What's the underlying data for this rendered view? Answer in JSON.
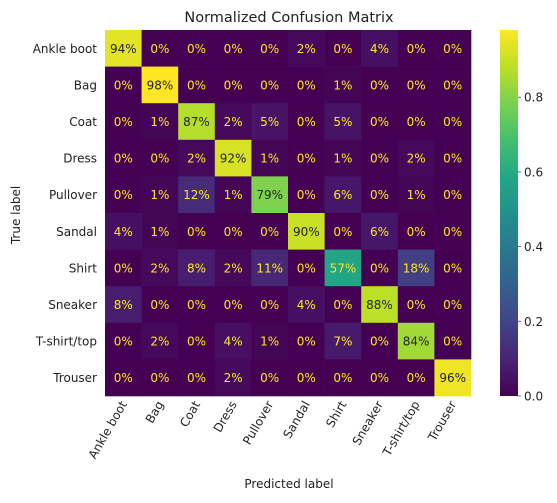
{
  "chart_data": {
    "type": "heatmap",
    "title": "Normalized Confusion Matrix",
    "xlabel": "Predicted label",
    "ylabel": "True label",
    "row_labels": [
      "Ankle boot",
      "Bag",
      "Coat",
      "Dress",
      "Pullover",
      "Sandal",
      "Shirt",
      "Sneaker",
      "T-shirt/top",
      "Trouser"
    ],
    "col_labels": [
      "Ankle boot",
      "Bag",
      "Coat",
      "Dress",
      "Pullover",
      "Sandal",
      "Shirt",
      "Sneaker",
      "T-shirt/top",
      "Trouser"
    ],
    "values": [
      [
        0.94,
        0.0,
        0.0,
        0.0,
        0.0,
        0.02,
        0.0,
        0.04,
        0.0,
        0.0
      ],
      [
        0.0,
        0.98,
        0.0,
        0.0,
        0.0,
        0.0,
        0.01,
        0.0,
        0.0,
        0.0
      ],
      [
        0.0,
        0.01,
        0.87,
        0.02,
        0.05,
        0.0,
        0.05,
        0.0,
        0.0,
        0.0
      ],
      [
        0.0,
        0.0,
        0.02,
        0.92,
        0.01,
        0.0,
        0.01,
        0.0,
        0.02,
        0.0
      ],
      [
        0.0,
        0.01,
        0.12,
        0.01,
        0.79,
        0.0,
        0.06,
        0.0,
        0.01,
        0.0
      ],
      [
        0.04,
        0.01,
        0.0,
        0.0,
        0.0,
        0.9,
        0.0,
        0.06,
        0.0,
        0.0
      ],
      [
        0.0,
        0.02,
        0.08,
        0.02,
        0.11,
        0.0,
        0.57,
        0.0,
        0.18,
        0.0
      ],
      [
        0.08,
        0.0,
        0.0,
        0.0,
        0.0,
        0.04,
        0.0,
        0.88,
        0.0,
        0.0
      ],
      [
        0.0,
        0.02,
        0.0,
        0.04,
        0.01,
        0.0,
        0.07,
        0.0,
        0.84,
        0.0
      ],
      [
        0.0,
        0.0,
        0.0,
        0.02,
        0.0,
        0.0,
        0.0,
        0.0,
        0.0,
        0.96
      ]
    ],
    "cell_labels": [
      [
        "94%",
        "0%",
        "0%",
        "0%",
        "0%",
        "2%",
        "0%",
        "4%",
        "0%",
        "0%"
      ],
      [
        "0%",
        "98%",
        "0%",
        "0%",
        "0%",
        "0%",
        "1%",
        "0%",
        "0%",
        "0%"
      ],
      [
        "0%",
        "1%",
        "87%",
        "2%",
        "5%",
        "0%",
        "5%",
        "0%",
        "0%",
        "0%"
      ],
      [
        "0%",
        "0%",
        "2%",
        "92%",
        "1%",
        "0%",
        "1%",
        "0%",
        "2%",
        "0%"
      ],
      [
        "0%",
        "1%",
        "12%",
        "1%",
        "79%",
        "0%",
        "6%",
        "0%",
        "1%",
        "0%"
      ],
      [
        "4%",
        "1%",
        "0%",
        "0%",
        "0%",
        "90%",
        "0%",
        "6%",
        "0%",
        "0%"
      ],
      [
        "0%",
        "2%",
        "8%",
        "2%",
        "11%",
        "0%",
        "57%",
        "0%",
        "18%",
        "0%"
      ],
      [
        "8%",
        "0%",
        "0%",
        "0%",
        "0%",
        "4%",
        "0%",
        "88%",
        "0%",
        "0%"
      ],
      [
        "0%",
        "2%",
        "0%",
        "4%",
        "1%",
        "0%",
        "7%",
        "0%",
        "84%",
        "0%"
      ],
      [
        "0%",
        "0%",
        "0%",
        "2%",
        "0%",
        "0%",
        "0%",
        "0%",
        "0%",
        "96%"
      ]
    ],
    "colorbar": {
      "min": 0.0,
      "max": 0.98,
      "ticks": [
        0.0,
        0.2,
        0.4,
        0.6,
        0.8
      ],
      "tick_labels": [
        "0.0",
        "0.2",
        "0.4",
        "0.6",
        "0.8"
      ]
    },
    "colormap": "viridis",
    "grid": false,
    "colors": {
      "text_on_dark": "#fde725",
      "text_on_light": "#222222"
    }
  }
}
